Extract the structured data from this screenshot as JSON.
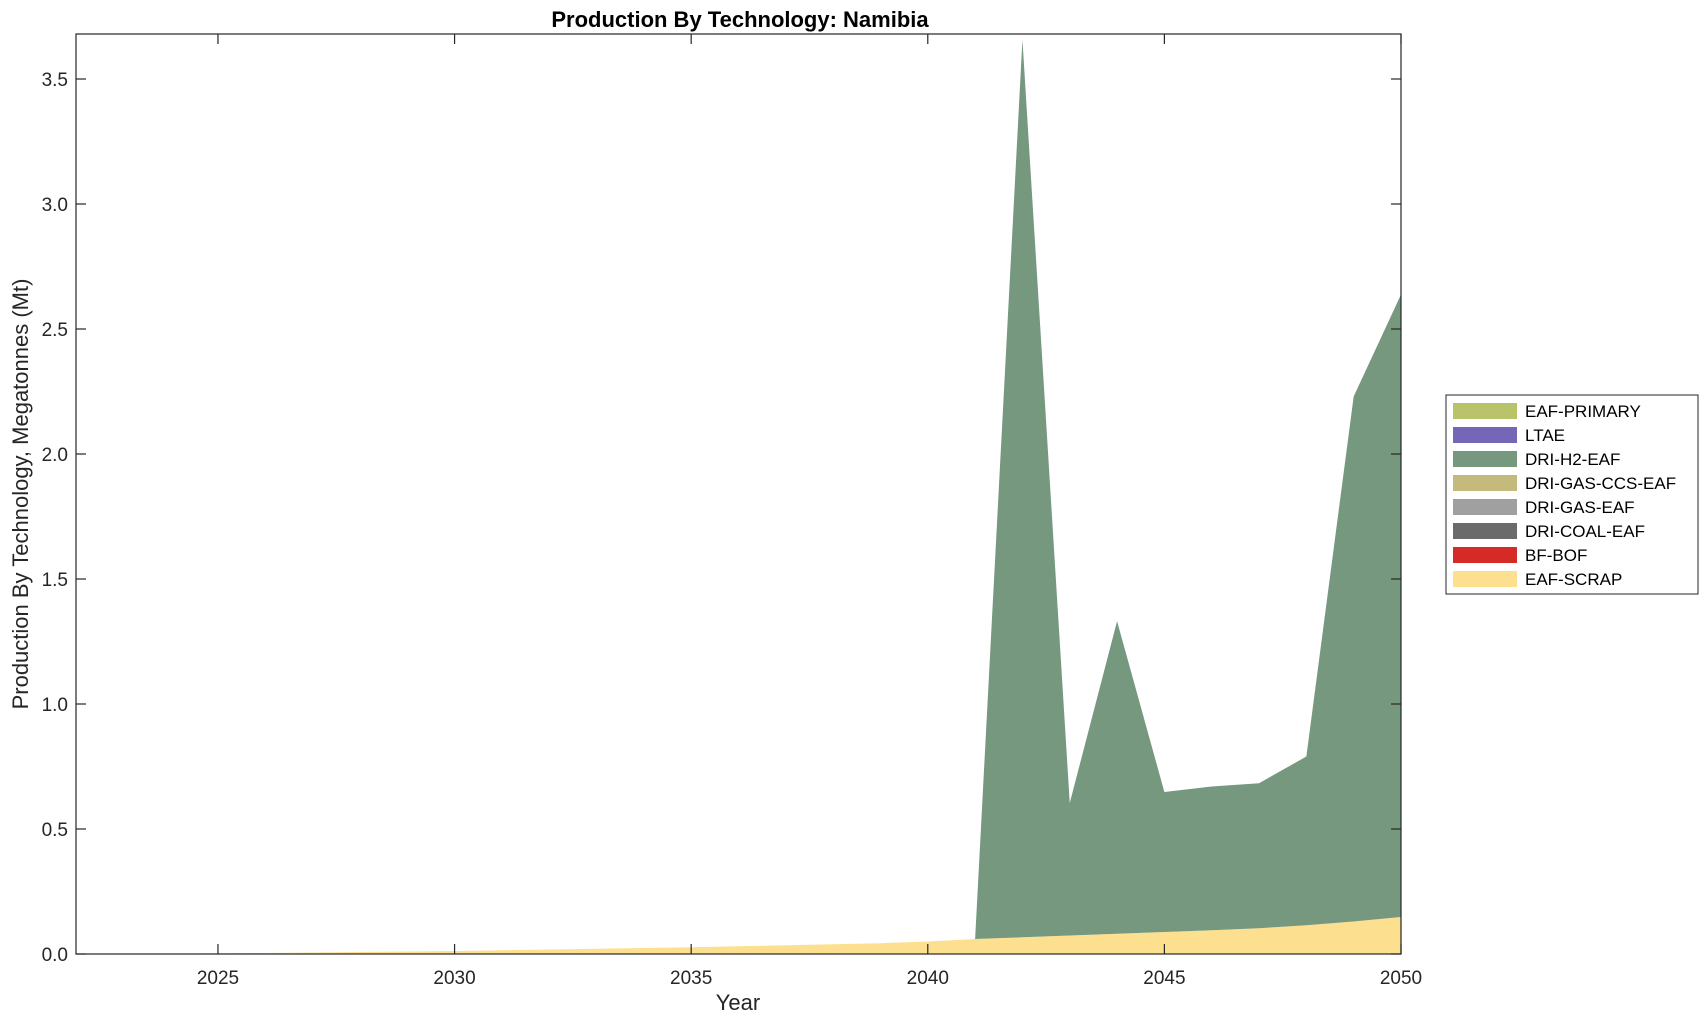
{
  "chart_data": {
    "type": "area",
    "stacked": true,
    "title": "Production By Technology: Namibia",
    "xlabel": "Year",
    "ylabel": "Production By Technology, Megatonnes (Mt)",
    "xlim": [
      2022,
      2050
    ],
    "ylim": [
      0,
      3.68
    ],
    "xticks": [
      2025,
      2030,
      2035,
      2040,
      2045,
      2050
    ],
    "xtick_labels": [
      "2025",
      "2030",
      "2035",
      "2040",
      "2045",
      "2050"
    ],
    "yticks": [
      0,
      0.5,
      1.0,
      1.5,
      2.0,
      2.5,
      3.0,
      3.5
    ],
    "ytick_labels": [
      "0.0",
      "0.5",
      "1.0",
      "1.5",
      "2.0",
      "2.5",
      "3.0",
      "3.5"
    ],
    "grid": false,
    "legend_position": "right",
    "x": [
      2022,
      2023,
      2024,
      2025,
      2026,
      2027,
      2028,
      2029,
      2030,
      2031,
      2032,
      2033,
      2034,
      2035,
      2036,
      2037,
      2038,
      2039,
      2040,
      2041,
      2042,
      2043,
      2044,
      2045,
      2046,
      2047,
      2048,
      2049,
      2050
    ],
    "series": [
      {
        "name": "EAF-SCRAP",
        "color": "#FDE08F",
        "values": [
          0.0,
          0.001,
          0.002,
          0.003,
          0.004,
          0.006,
          0.008,
          0.01,
          0.012,
          0.015,
          0.018,
          0.021,
          0.024,
          0.027,
          0.031,
          0.035,
          0.039,
          0.043,
          0.05,
          0.06,
          0.067,
          0.074,
          0.081,
          0.088,
          0.095,
          0.103,
          0.115,
          0.13,
          0.148
        ]
      },
      {
        "name": "BF-BOF",
        "color": "#D62A26",
        "values": [
          0,
          0,
          0,
          0,
          0,
          0,
          0,
          0,
          0,
          0,
          0,
          0,
          0,
          0,
          0,
          0,
          0,
          0,
          0,
          0,
          0,
          0,
          0,
          0,
          0,
          0,
          0,
          0,
          0
        ]
      },
      {
        "name": "DRI-COAL-EAF",
        "color": "#6B6B6B",
        "values": [
          0,
          0,
          0,
          0,
          0,
          0,
          0,
          0,
          0,
          0,
          0,
          0,
          0,
          0,
          0,
          0,
          0,
          0,
          0,
          0,
          0,
          0,
          0,
          0,
          0,
          0,
          0,
          0,
          0
        ]
      },
      {
        "name": "DRI-GAS-EAF",
        "color": "#A0A0A0",
        "values": [
          0,
          0,
          0,
          0,
          0,
          0,
          0,
          0,
          0,
          0,
          0,
          0,
          0,
          0,
          0,
          0,
          0,
          0,
          0,
          0,
          0,
          0,
          0,
          0,
          0,
          0,
          0,
          0,
          0
        ]
      },
      {
        "name": "DRI-GAS-CCS-EAF",
        "color": "#C4BA7C",
        "values": [
          0,
          0,
          0,
          0,
          0,
          0,
          0,
          0,
          0,
          0,
          0,
          0,
          0,
          0,
          0,
          0,
          0,
          0,
          0,
          0,
          0,
          0,
          0,
          0,
          0,
          0,
          0,
          0,
          0
        ]
      },
      {
        "name": "DRI-H2-EAF",
        "color": "#76987E",
        "values": [
          0,
          0,
          0,
          0,
          0,
          0,
          0,
          0,
          0,
          0,
          0,
          0,
          0,
          0,
          0,
          0,
          0,
          0,
          0,
          0,
          3.59,
          0.53,
          1.25,
          0.56,
          0.575,
          0.58,
          0.675,
          2.1,
          2.49
        ]
      },
      {
        "name": "LTAE",
        "color": "#7666B8",
        "values": [
          0,
          0,
          0,
          0,
          0,
          0,
          0,
          0,
          0,
          0,
          0,
          0,
          0,
          0,
          0,
          0,
          0,
          0,
          0,
          0,
          0,
          0,
          0,
          0,
          0,
          0,
          0,
          0,
          0
        ]
      },
      {
        "name": "EAF-PRIMARY",
        "color": "#B9C46A",
        "values": [
          0,
          0,
          0,
          0,
          0,
          0,
          0,
          0,
          0,
          0,
          0,
          0,
          0,
          0,
          0,
          0,
          0,
          0,
          0,
          0,
          0,
          0,
          0,
          0,
          0,
          0,
          0,
          0,
          0
        ]
      }
    ],
    "legend_order": [
      "EAF-PRIMARY",
      "LTAE",
      "DRI-H2-EAF",
      "DRI-GAS-CCS-EAF",
      "DRI-GAS-EAF",
      "DRI-COAL-EAF",
      "BF-BOF",
      "EAF-SCRAP"
    ]
  }
}
